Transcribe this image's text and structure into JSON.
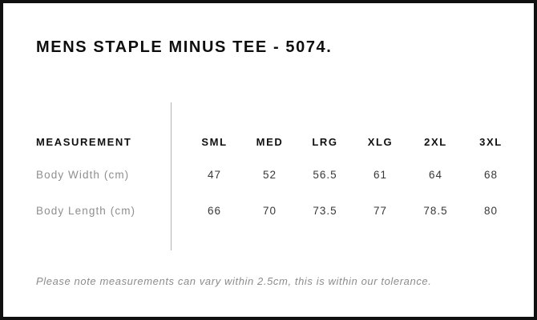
{
  "header": {
    "title": "MENS STAPLE MINUS TEE - 5074."
  },
  "chart_data": {
    "type": "table",
    "title": "MENS STAPLE MINUS TEE - 5074.",
    "columns": [
      "MEASUREMENT",
      "SML",
      "MED",
      "LRG",
      "XLG",
      "2XL",
      "3XL"
    ],
    "rows": [
      {
        "label": "Body Width (cm)",
        "values": [
          "47",
          "52",
          "56.5",
          "61",
          "64",
          "68"
        ]
      },
      {
        "label": "Body Length (cm)",
        "values": [
          "66",
          "70",
          "73.5",
          "77",
          "78.5",
          "80"
        ]
      }
    ],
    "unit": "cm"
  },
  "footer": {
    "note": "Please note measurements can vary within 2.5cm, this is within our tolerance."
  },
  "colors": {
    "background": "#ffffff",
    "frame_border": "#101010",
    "title_text": "#0e0e0e",
    "header_text": "#101010",
    "label_text": "#8f8f8f",
    "value_text": "#383838",
    "note_text": "#8c8c8c",
    "divider": "#b3b3b3"
  }
}
